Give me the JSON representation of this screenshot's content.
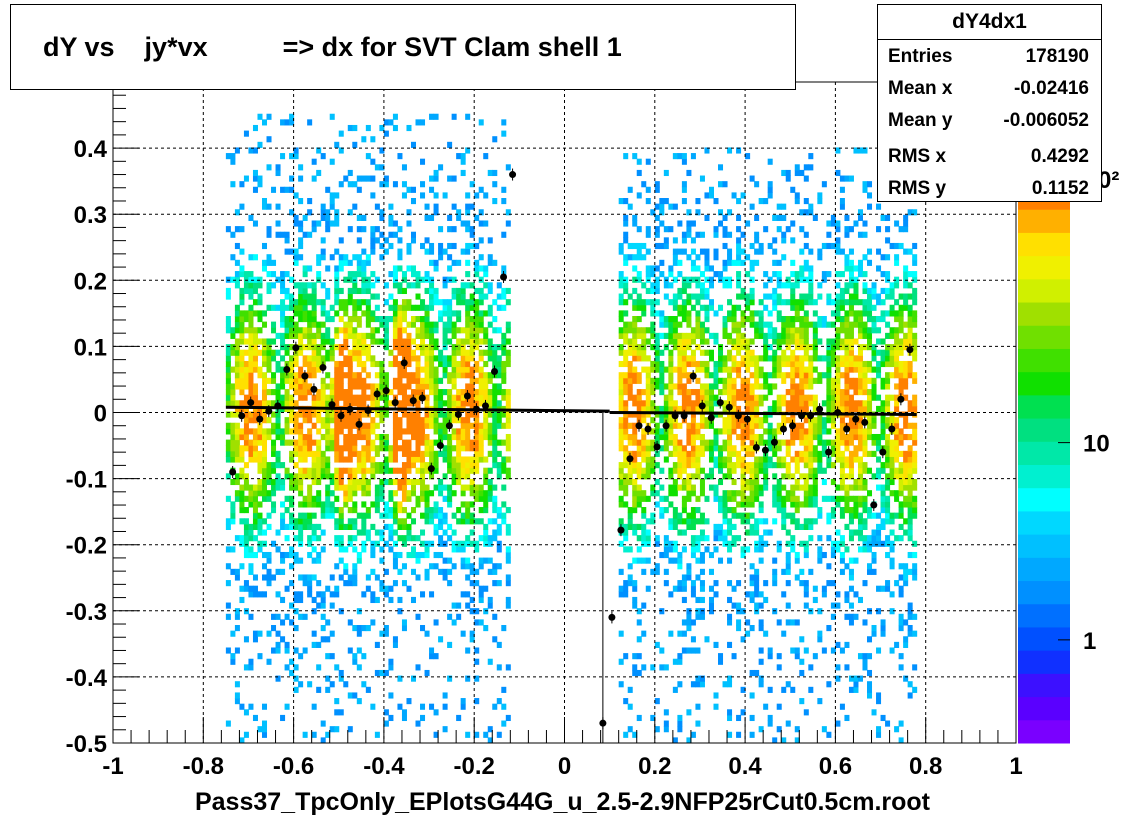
{
  "title": "dY vs    jy*vx          => dx for SVT Clam shell 1",
  "footer": "Pass37_TpcOnly_EPlotsG44G_u_2.5-2.9NFP25rCut0.5cm.root",
  "stats": {
    "name": "dY4dx1",
    "rows": [
      {
        "label": "Entries",
        "value": "178190"
      },
      {
        "label": "Mean x",
        "value": "-0.02416"
      },
      {
        "label": "Mean y",
        "value": "-0.006052"
      },
      {
        "label": "RMS x",
        "value": "0.4292"
      },
      {
        "label": "RMS y",
        "value": "0.1152"
      }
    ]
  },
  "chart_data": {
    "type": "heatmap",
    "xlim": [
      -1,
      1
    ],
    "ylim": [
      -0.5,
      0.5
    ],
    "x_ticks": [
      -1,
      -0.8,
      -0.6,
      -0.4,
      -0.2,
      0,
      0.2,
      0.4,
      0.6,
      0.8,
      1
    ],
    "x_tick_labels": [
      "-1",
      "-0.8",
      "-0.6",
      "-0.4",
      "-0.2",
      "0",
      "0.2",
      "0.4",
      "0.6",
      "0.8",
      "1"
    ],
    "y_ticks": [
      -0.5,
      -0.4,
      -0.3,
      -0.2,
      -0.1,
      0,
      0.1,
      0.2,
      0.3,
      0.4
    ],
    "y_tick_labels": [
      "-0.5",
      "-0.4",
      "-0.3",
      "-0.2",
      "-0.1",
      "0",
      "0.1",
      "0.2",
      "0.3",
      "0.4"
    ],
    "grid": true,
    "colorbar": {
      "scale": "log",
      "range": [
        0.3,
        200
      ],
      "tick_values": [
        1,
        10
      ],
      "tick_labels": [
        "1",
        "10"
      ],
      "partial_label": "0²",
      "colors": [
        "#7a00ff",
        "#5a00ff",
        "#3c10ff",
        "#1030ff",
        "#0050ff",
        "#0070ff",
        "#0090ff",
        "#00a8ff",
        "#00c0ff",
        "#00d8ff",
        "#00ffff",
        "#00f0d0",
        "#00e8a8",
        "#00e080",
        "#00e050",
        "#10e000",
        "#40e000",
        "#70e000",
        "#a0e000",
        "#d0f000",
        "#f0f000",
        "#ffe000",
        "#ffb000",
        "#ff8000"
      ]
    },
    "hotspot_x": [
      -0.5,
      -0.37
    ],
    "regions": [
      {
        "x": [
          -0.75,
          -0.12
        ],
        "y": [
          -0.5,
          0.45
        ]
      },
      {
        "x": [
          0.12,
          0.78
        ],
        "y": [
          -0.5,
          0.4
        ]
      }
    ],
    "profile_points": [
      {
        "x": -0.735,
        "y": -0.09
      },
      {
        "x": -0.715,
        "y": -0.005
      },
      {
        "x": -0.695,
        "y": 0.015
      },
      {
        "x": -0.675,
        "y": -0.01
      },
      {
        "x": -0.655,
        "y": 0.002
      },
      {
        "x": -0.635,
        "y": 0.01
      },
      {
        "x": -0.615,
        "y": 0.065
      },
      {
        "x": -0.595,
        "y": 0.098
      },
      {
        "x": -0.575,
        "y": 0.055
      },
      {
        "x": -0.555,
        "y": 0.035
      },
      {
        "x": -0.535,
        "y": 0.068
      },
      {
        "x": -0.515,
        "y": 0.012
      },
      {
        "x": -0.495,
        "y": -0.005
      },
      {
        "x": -0.475,
        "y": 0.005
      },
      {
        "x": -0.455,
        "y": -0.018
      },
      {
        "x": -0.435,
        "y": 0.003
      },
      {
        "x": -0.415,
        "y": 0.028
      },
      {
        "x": -0.395,
        "y": 0.033
      },
      {
        "x": -0.375,
        "y": 0.015
      },
      {
        "x": -0.355,
        "y": 0.075
      },
      {
        "x": -0.335,
        "y": 0.018
      },
      {
        "x": -0.315,
        "y": 0.022
      },
      {
        "x": -0.295,
        "y": -0.085
      },
      {
        "x": -0.275,
        "y": -0.05
      },
      {
        "x": -0.255,
        "y": -0.02
      },
      {
        "x": -0.235,
        "y": -0.003
      },
      {
        "x": -0.215,
        "y": 0.025
      },
      {
        "x": -0.195,
        "y": 0.005
      },
      {
        "x": -0.175,
        "y": 0.01
      },
      {
        "x": -0.155,
        "y": 0.062
      },
      {
        "x": -0.135,
        "y": 0.205
      },
      {
        "x": -0.115,
        "y": 0.36
      },
      {
        "x": 0.085,
        "y": -0.47
      },
      {
        "x": 0.105,
        "y": -0.31
      },
      {
        "x": 0.125,
        "y": -0.178
      },
      {
        "x": 0.145,
        "y": -0.07
      },
      {
        "x": 0.165,
        "y": -0.02
      },
      {
        "x": 0.185,
        "y": -0.025
      },
      {
        "x": 0.205,
        "y": -0.052
      },
      {
        "x": 0.225,
        "y": -0.02
      },
      {
        "x": 0.245,
        "y": -0.005
      },
      {
        "x": 0.265,
        "y": -0.005
      },
      {
        "x": 0.285,
        "y": 0.055
      },
      {
        "x": 0.305,
        "y": 0.01
      },
      {
        "x": 0.325,
        "y": -0.008
      },
      {
        "x": 0.345,
        "y": 0.015
      },
      {
        "x": 0.365,
        "y": 0.008
      },
      {
        "x": 0.385,
        "y": -0.005
      },
      {
        "x": 0.405,
        "y": -0.01
      },
      {
        "x": 0.425,
        "y": -0.053
      },
      {
        "x": 0.445,
        "y": -0.057
      },
      {
        "x": 0.465,
        "y": -0.045
      },
      {
        "x": 0.485,
        "y": -0.025
      },
      {
        "x": 0.505,
        "y": -0.02
      },
      {
        "x": 0.525,
        "y": -0.005
      },
      {
        "x": 0.545,
        "y": -0.005
      },
      {
        "x": 0.565,
        "y": 0.005
      },
      {
        "x": 0.585,
        "y": -0.06
      },
      {
        "x": 0.605,
        "y": 0.0
      },
      {
        "x": 0.625,
        "y": -0.025
      },
      {
        "x": 0.645,
        "y": -0.01
      },
      {
        "x": 0.665,
        "y": -0.015
      },
      {
        "x": 0.685,
        "y": -0.14
      },
      {
        "x": 0.705,
        "y": -0.06
      },
      {
        "x": 0.725,
        "y": -0.025
      },
      {
        "x": 0.745,
        "y": 0.02
      },
      {
        "x": 0.765,
        "y": 0.095
      }
    ],
    "fit_lines": [
      {
        "x": [
          -0.75,
          0.1
        ],
        "y": [
          0.008,
          0.002
        ]
      },
      {
        "x": [
          0.1,
          0.78
        ],
        "y": [
          0.0,
          -0.003
        ]
      }
    ]
  }
}
